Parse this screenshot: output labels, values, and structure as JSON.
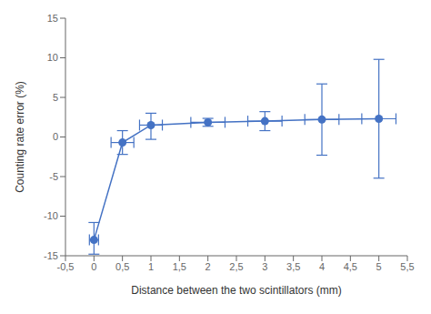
{
  "chart_data": {
    "type": "line",
    "x": [
      0,
      0.5,
      1,
      2,
      3,
      4,
      5
    ],
    "values": [
      -13.0,
      -0.7,
      1.5,
      1.85,
      2.0,
      2.2,
      2.3
    ],
    "yerr_low": [
      1.8,
      1.5,
      1.8,
      0.5,
      1.2,
      4.5,
      7.5
    ],
    "yerr_high": [
      2.2,
      1.5,
      1.5,
      0.5,
      1.2,
      4.5,
      7.5
    ],
    "xerr": [
      0.08,
      0.2,
      0.2,
      0.3,
      0.3,
      0.3,
      0.3
    ],
    "color": "#4472C4",
    "marker": "circle",
    "line_style": "solid",
    "grid": false,
    "xlabel": "Distance between the two scintillators (mm)",
    "ylabel": "Counting rate error (%)",
    "xlim": [
      -0.5,
      5.5
    ],
    "ylim": [
      -15,
      15
    ],
    "xticks": [
      {
        "value": -0.5,
        "label": "-0,5"
      },
      0,
      {
        "value": 0.5,
        "label": "0,5"
      },
      1,
      {
        "value": 1.5,
        "label": "1,5"
      },
      2,
      {
        "value": 2.5,
        "label": "2,5"
      },
      3,
      {
        "value": 3.5,
        "label": "3,5"
      },
      4,
      {
        "value": 4.5,
        "label": "4,5"
      },
      5,
      {
        "value": 5.5,
        "label": "5,5"
      }
    ],
    "yticks": [
      -15,
      -10,
      -5,
      0,
      5,
      10,
      15
    ]
  }
}
